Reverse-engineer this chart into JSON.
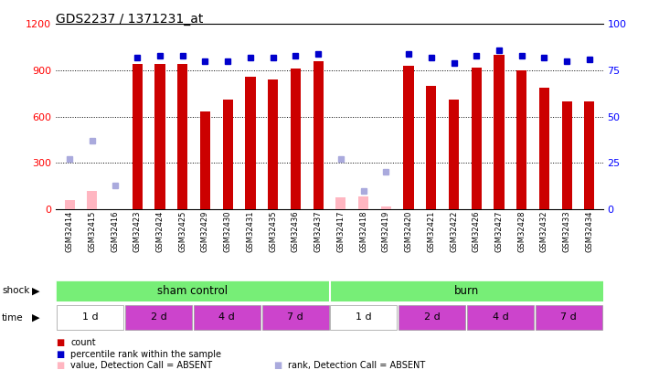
{
  "title": "GDS2237 / 1371231_at",
  "samples": [
    "GSM32414",
    "GSM32415",
    "GSM32416",
    "GSM32423",
    "GSM32424",
    "GSM32425",
    "GSM32429",
    "GSM32430",
    "GSM32431",
    "GSM32435",
    "GSM32436",
    "GSM32437",
    "GSM32417",
    "GSM32418",
    "GSM32419",
    "GSM32420",
    "GSM32421",
    "GSM32422",
    "GSM32426",
    "GSM32427",
    "GSM32428",
    "GSM32432",
    "GSM32433",
    "GSM32434"
  ],
  "counts": [
    0,
    0,
    0,
    940,
    940,
    940,
    635,
    710,
    860,
    840,
    910,
    960,
    0,
    0,
    0,
    930,
    800,
    710,
    920,
    1000,
    900,
    790,
    700,
    700
  ],
  "absent_counts": [
    60,
    120,
    0,
    0,
    0,
    0,
    0,
    0,
    0,
    0,
    0,
    0,
    75,
    80,
    15,
    0,
    0,
    0,
    0,
    0,
    0,
    0,
    0,
    0
  ],
  "ranks": [
    0,
    0,
    0,
    82,
    83,
    83,
    80,
    80,
    82,
    82,
    83,
    84,
    0,
    0,
    0,
    84,
    82,
    79,
    83,
    86,
    83,
    82,
    80,
    81
  ],
  "absent_ranks": [
    27,
    37,
    13,
    0,
    0,
    0,
    0,
    0,
    0,
    0,
    0,
    0,
    27,
    10,
    20,
    0,
    0,
    0,
    0,
    0,
    0,
    0,
    0,
    0
  ],
  "ylim_left": [
    0,
    1200
  ],
  "ylim_right": [
    0,
    100
  ],
  "yticks_left": [
    0,
    300,
    600,
    900,
    1200
  ],
  "yticks_right": [
    0,
    25,
    50,
    75,
    100
  ],
  "time_groups": [
    {
      "label": "1 d",
      "start": 0,
      "end": 3,
      "color": "#ffffff"
    },
    {
      "label": "2 d",
      "start": 3,
      "end": 6,
      "color": "#CC44CC"
    },
    {
      "label": "4 d",
      "start": 6,
      "end": 9,
      "color": "#CC44CC"
    },
    {
      "label": "7 d",
      "start": 9,
      "end": 12,
      "color": "#CC44CC"
    },
    {
      "label": "1 d",
      "start": 12,
      "end": 15,
      "color": "#ffffff"
    },
    {
      "label": "2 d",
      "start": 15,
      "end": 18,
      "color": "#CC44CC"
    },
    {
      "label": "4 d",
      "start": 18,
      "end": 21,
      "color": "#CC44CC"
    },
    {
      "label": "7 d",
      "start": 21,
      "end": 24,
      "color": "#CC44CC"
    }
  ],
  "bar_color": "#CC0000",
  "absent_bar_color": "#FFB6C1",
  "rank_color": "#0000CC",
  "absent_rank_color": "#AAAADD",
  "shock_green": "#77EE77",
  "xtick_bg": "#DDDDDD",
  "bg_color": "#ffffff"
}
